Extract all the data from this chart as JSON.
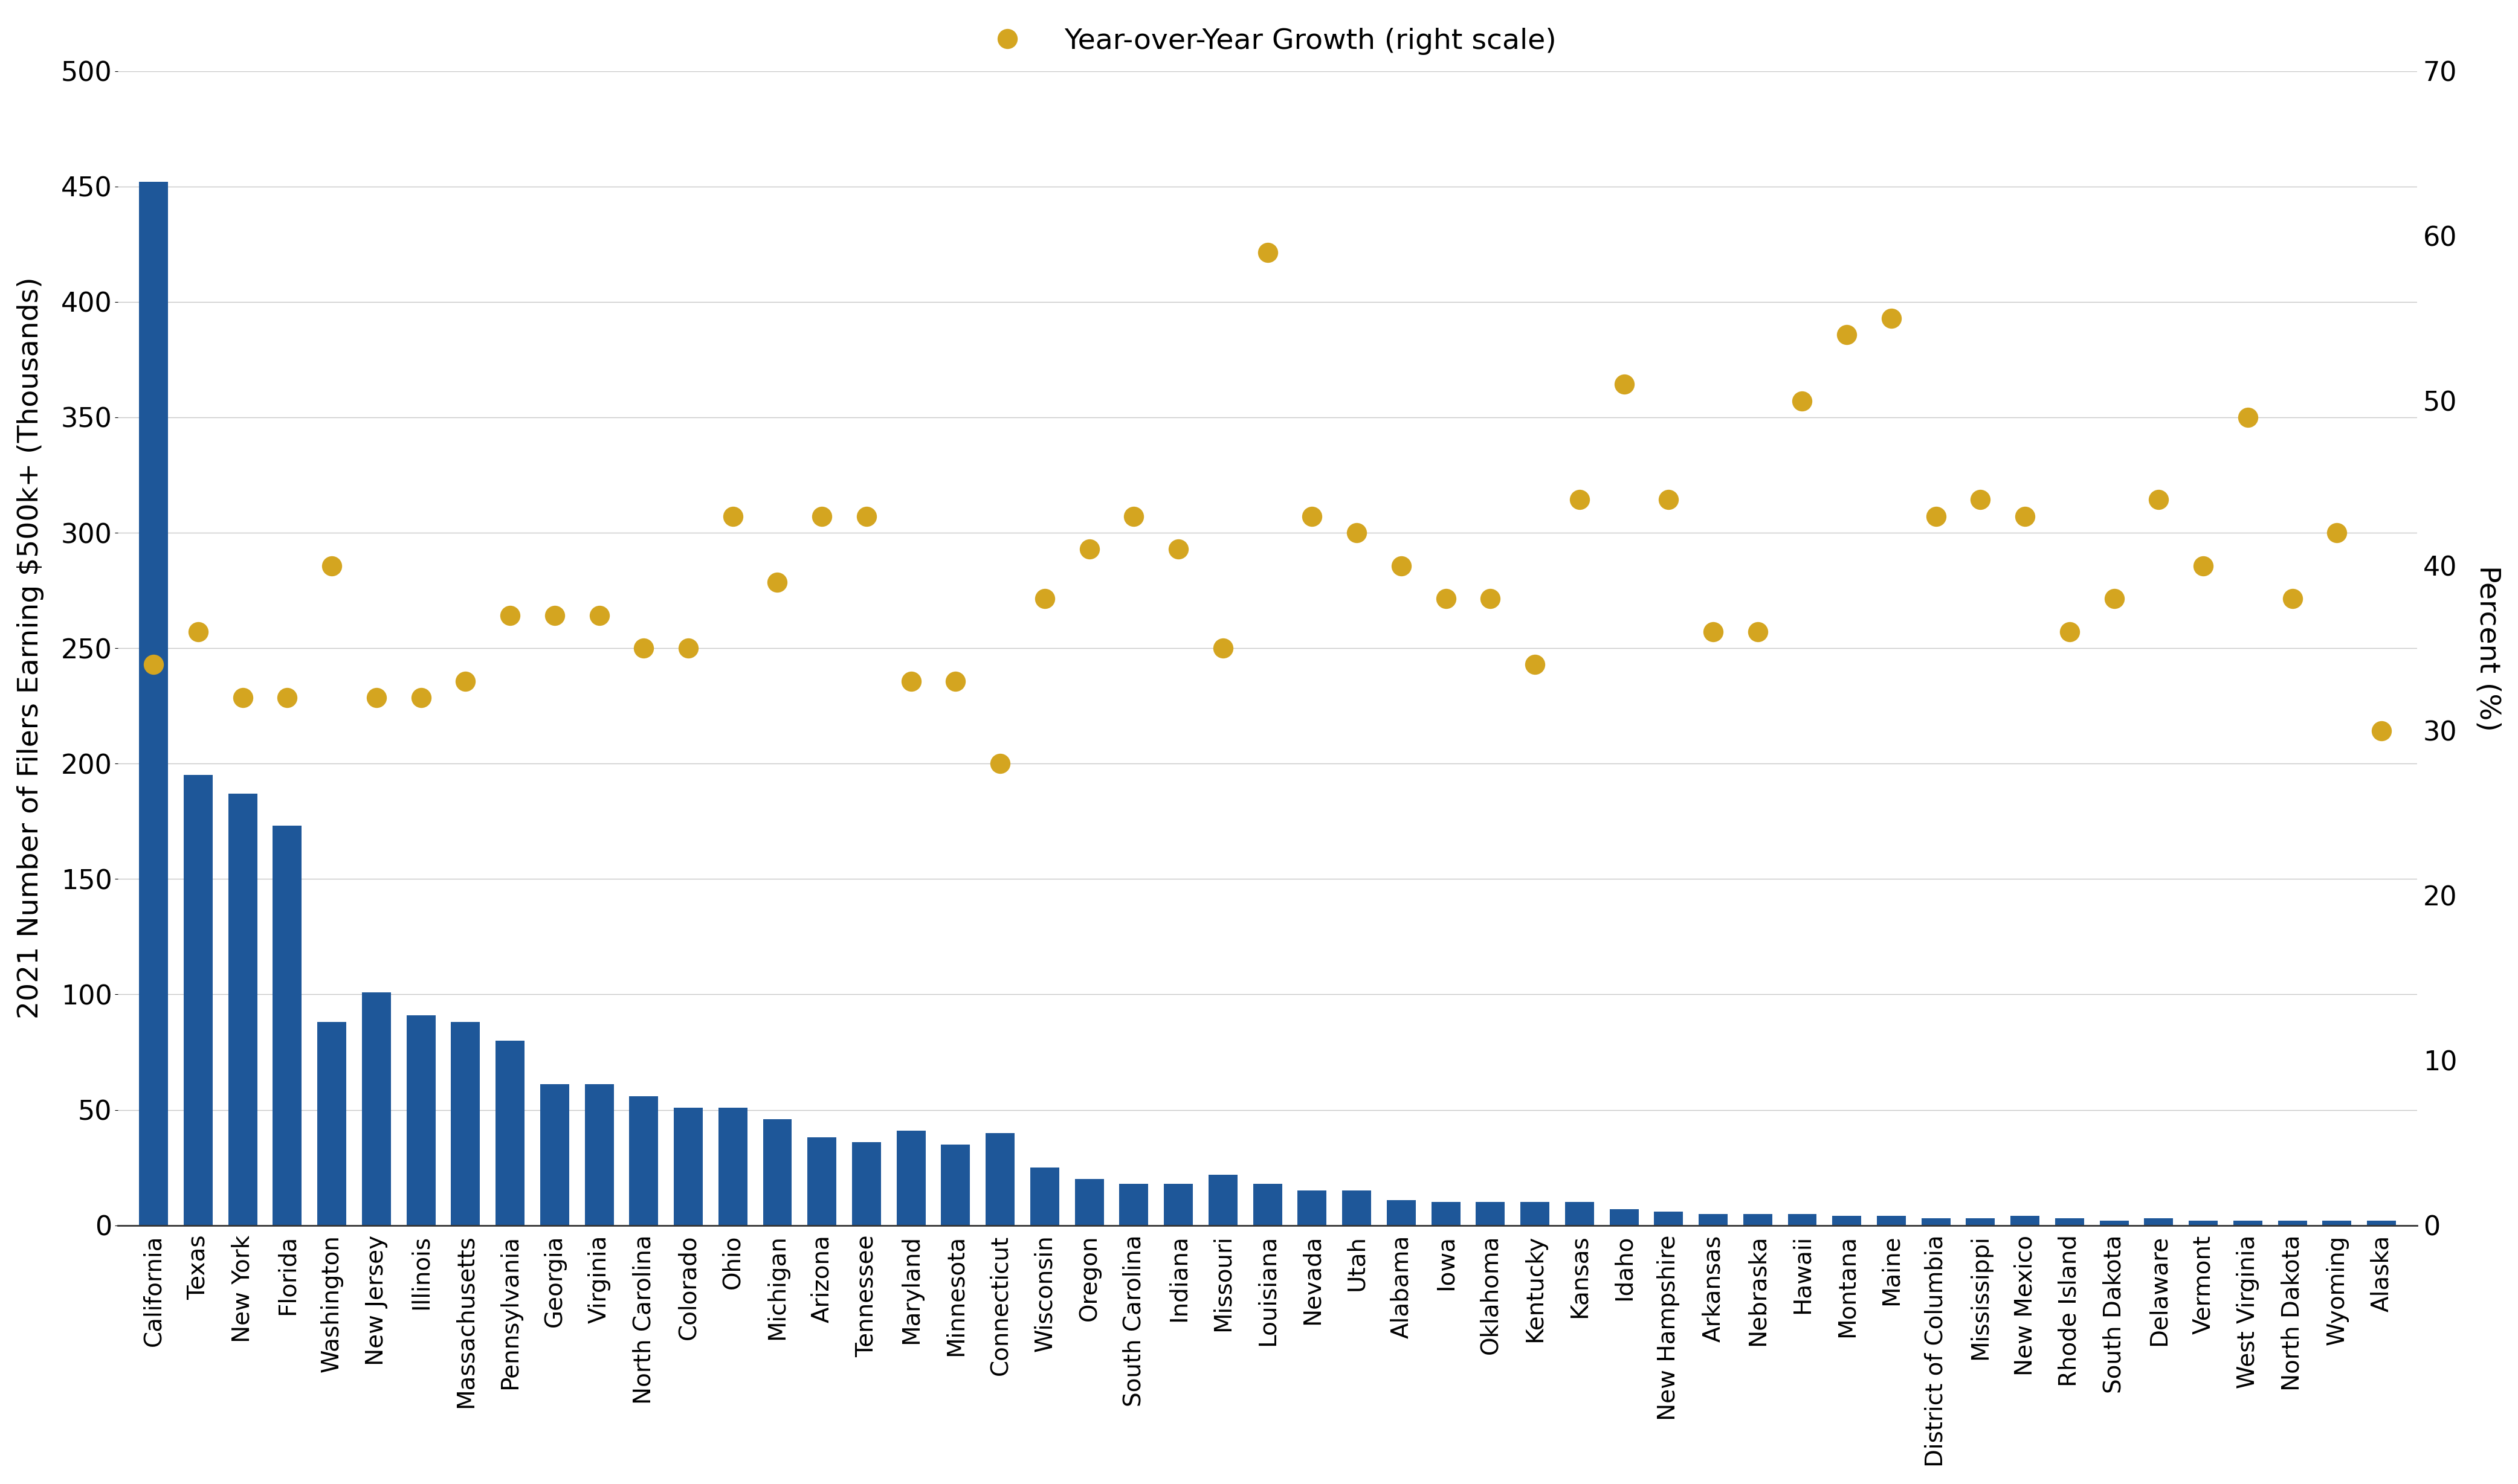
{
  "states": [
    "California",
    "Texas",
    "New York",
    "Florida",
    "Washington",
    "New Jersey",
    "Illinois",
    "Massachusetts",
    "Pennsylvania",
    "Georgia",
    "Virginia",
    "North Carolina",
    "Colorado",
    "Ohio",
    "Michigan",
    "Arizona",
    "Tennessee",
    "Maryland",
    "Minnesota",
    "Connecticut",
    "Wisconsin",
    "Oregon",
    "South Carolina",
    "Indiana",
    "Missouri",
    "Louisiana",
    "Nevada",
    "Utah",
    "Alabama",
    "Iowa",
    "Oklahoma",
    "Kentucky",
    "Kansas",
    "Idaho",
    "New Hampshire",
    "Arkansas",
    "Nebraska",
    "Hawaii",
    "Montana",
    "Maine",
    "District of Columbia",
    "Mississippi",
    "New Mexico",
    "Rhode Island",
    "South Dakota",
    "Delaware",
    "Vermont",
    "West Virginia",
    "North Dakota",
    "Wyoming",
    "Alaska"
  ],
  "bar_values": [
    452,
    195,
    187,
    173,
    88,
    101,
    91,
    88,
    80,
    61,
    61,
    56,
    51,
    51,
    46,
    38,
    36,
    41,
    35,
    40,
    25,
    20,
    18,
    18,
    22,
    18,
    15,
    15,
    11,
    10,
    10,
    10,
    10,
    7,
    6,
    5,
    5,
    5,
    4,
    4,
    3,
    3,
    4,
    3,
    2,
    3,
    2,
    2,
    2,
    2,
    2
  ],
  "dot_values": [
    34,
    36,
    32,
    32,
    40,
    32,
    32,
    33,
    37,
    37,
    37,
    35,
    35,
    43,
    39,
    43,
    43,
    33,
    33,
    28,
    38,
    41,
    43,
    41,
    35,
    59,
    43,
    42,
    40,
    38,
    38,
    34,
    44,
    51,
    44,
    36,
    36,
    50,
    54,
    55,
    43,
    44,
    43,
    36,
    38,
    44,
    40,
    49,
    38,
    42,
    30
  ],
  "bar_color": "#1e5799",
  "dot_color": "#d4a520",
  "left_ylim": [
    0,
    500
  ],
  "right_ylim": [
    0,
    70
  ],
  "left_yticks": [
    0,
    50,
    100,
    150,
    200,
    250,
    300,
    350,
    400,
    450,
    500
  ],
  "right_yticks": [
    0,
    10,
    20,
    30,
    40,
    50,
    60,
    70
  ],
  "ylabel_left": "2021 Number of Filers Earning $500k+ (Thousands)",
  "ylabel_right": "Percent (%)",
  "legend_label": "Year-over-Year Growth (right scale)",
  "background_color": "#ffffff",
  "grid_color": "#c8c8c8"
}
